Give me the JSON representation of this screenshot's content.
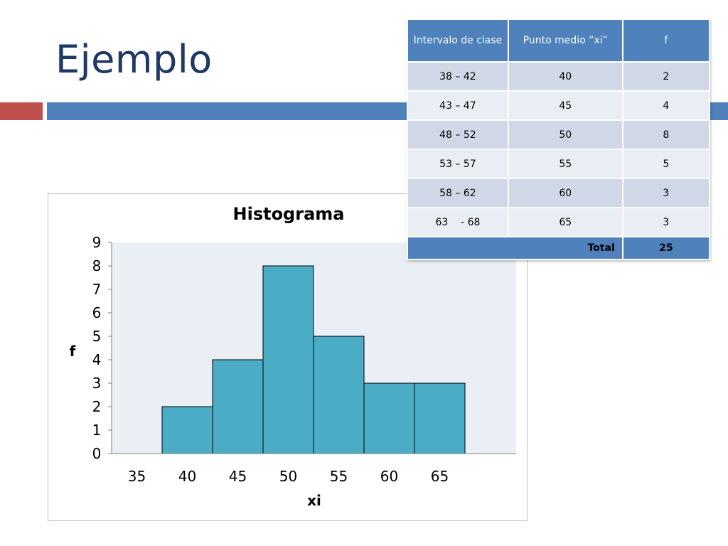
{
  "slide": {
    "title": "Ejemplo",
    "accent_red": "#c0504d",
    "accent_blue": "#4f81bd"
  },
  "table": {
    "headers": [
      "Intervalo de clase",
      "Punto medio “xi”",
      "f"
    ],
    "rows": [
      [
        "38 – 42",
        "40",
        "2"
      ],
      [
        "43 – 47",
        "45",
        "4"
      ],
      [
        "48 – 52",
        "50",
        "8"
      ],
      [
        "53 – 57",
        "55",
        "5"
      ],
      [
        "58 – 62",
        "60",
        "3"
      ],
      [
        "63    - 68",
        "65",
        "3"
      ]
    ],
    "total_label": "Total",
    "total_value": "25"
  },
  "chart_data": {
    "type": "bar",
    "title": "Histograma",
    "xlabel": "xi",
    "ylabel": "f",
    "x_ticks": [
      35,
      40,
      45,
      50,
      55,
      60,
      65
    ],
    "categories": [
      "35",
      "40",
      "45",
      "50",
      "55",
      "60",
      "65"
    ],
    "values": [
      0,
      2,
      4,
      8,
      5,
      3,
      3
    ],
    "ylim": [
      0,
      9
    ],
    "y_ticks": [
      0,
      1,
      2,
      3,
      4,
      5,
      6,
      7,
      8,
      9
    ],
    "grid": false,
    "legend": "none",
    "bar_color": "#4bacc6",
    "plot_background": "#e9eff5"
  }
}
